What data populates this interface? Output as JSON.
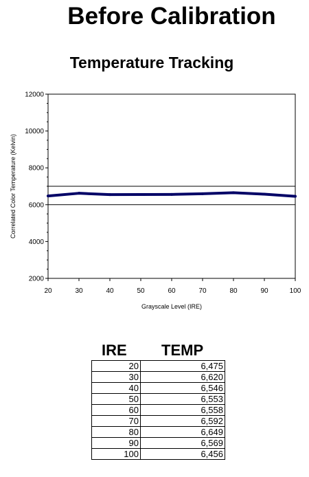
{
  "page_title": "Before Calibration",
  "chart_data": {
    "type": "line",
    "title": "Temperature Tracking",
    "xlabel": "Grayscale Level (IRE)",
    "ylabel": "Correlated Color Temperature (Kelvin)",
    "xlim": [
      20,
      100
    ],
    "ylim": [
      2000,
      12000
    ],
    "x_ticks": [
      20,
      30,
      40,
      50,
      60,
      70,
      80,
      90,
      100
    ],
    "y_ticks": [
      2000,
      4000,
      6000,
      8000,
      10000,
      12000
    ],
    "x": [
      20,
      30,
      40,
      50,
      60,
      70,
      80,
      90,
      100
    ],
    "series": [
      {
        "values": [
          6475,
          6620,
          6546,
          6553,
          6558,
          6592,
          6649,
          6569,
          6456
        ],
        "color": "#000066"
      }
    ],
    "reference_lines": [
      7000,
      6000
    ],
    "grid": false,
    "legend": "none"
  },
  "table": {
    "headers": [
      "IRE",
      "TEMP"
    ],
    "rows": [
      [
        "20",
        "6,475"
      ],
      [
        "30",
        "6,620"
      ],
      [
        "40",
        "6,546"
      ],
      [
        "50",
        "6,553"
      ],
      [
        "60",
        "6,558"
      ],
      [
        "70",
        "6,592"
      ],
      [
        "80",
        "6,649"
      ],
      [
        "90",
        "6,569"
      ],
      [
        "100",
        "6,456"
      ]
    ]
  }
}
